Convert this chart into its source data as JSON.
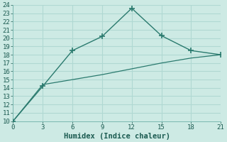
{
  "xlabel": "Humidex (Indice chaleur)",
  "line1_x": [
    0,
    3,
    6,
    9,
    12,
    15,
    18,
    21
  ],
  "line1_y": [
    10,
    14.2,
    18.5,
    20.2,
    23.6,
    20.3,
    18.5,
    18.0
  ],
  "line2_x": [
    0,
    3,
    6,
    9,
    12,
    15,
    18,
    21
  ],
  "line2_y": [
    10,
    14.4,
    15.0,
    15.6,
    16.3,
    17.0,
    17.6,
    18.0
  ],
  "line_color": "#2a7a6e",
  "marker": "P",
  "marker_size": 4,
  "xlim": [
    0,
    21
  ],
  "ylim": [
    10,
    24
  ],
  "xticks": [
    0,
    3,
    6,
    9,
    12,
    15,
    18,
    21
  ],
  "yticks": [
    10,
    11,
    12,
    13,
    14,
    15,
    16,
    17,
    18,
    19,
    20,
    21,
    22,
    23,
    24
  ],
  "bg_color": "#cdeae4",
  "grid_color": "#b0d8d2",
  "tick_fontsize": 6.5,
  "xlabel_fontsize": 7.5
}
